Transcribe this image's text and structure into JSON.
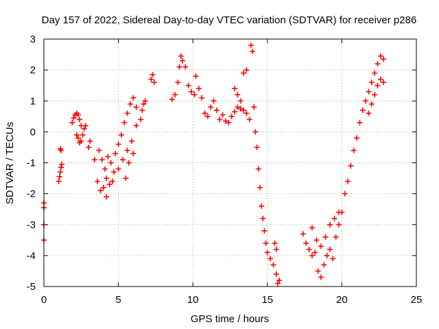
{
  "chart_data": {
    "type": "scatter",
    "title": "Day 157 of 2022, Sidereal Day-to-day VTEC variation (SDTVAR) for receiver p286",
    "xlabel": "GPS time / hours",
    "ylabel": "SDTVAR / TECUs",
    "xlim": [
      0,
      25
    ],
    "ylim": [
      -5,
      3
    ],
    "xticks": [
      0,
      5,
      10,
      15,
      20,
      25
    ],
    "yticks": [
      -5,
      -4,
      -3,
      -2,
      -1,
      0,
      1,
      2,
      3
    ],
    "grid": true,
    "marker": "+",
    "color": "#ff0000",
    "series": [
      {
        "name": "SDTVAR",
        "x": [
          0.0,
          0.0,
          0.0,
          0.0,
          1.0,
          1.05,
          1.1,
          1.15,
          1.2,
          1.1,
          1.15,
          1.9,
          2.0,
          2.1,
          2.2,
          2.3,
          2.4,
          2.5,
          2.2,
          2.3,
          2.4,
          2.5,
          2.6,
          2.7,
          2.8,
          3.0,
          3.1,
          3.4,
          3.6,
          3.8,
          4.0,
          4.2,
          4.4,
          4.6,
          3.7,
          3.9,
          4.1,
          4.3,
          4.5,
          4.7,
          4.2,
          4.8,
          5.0,
          5.2,
          5.4,
          5.6,
          5.8,
          6.0,
          6.2,
          5.0,
          5.3,
          5.6,
          5.9,
          6.2,
          5.5,
          5.7,
          6.0,
          6.5,
          6.6,
          6.7,
          6.8,
          7.2,
          7.3,
          7.4,
          8.6,
          8.8,
          9.0,
          9.1,
          9.2,
          9.3,
          9.5,
          9.7,
          9.9,
          10.1,
          10.2,
          10.4,
          10.6,
          10.8,
          11.0,
          11.2,
          11.4,
          11.6,
          11.8,
          12.0,
          12.2,
          12.4,
          12.6,
          12.8,
          13.0,
          13.2,
          13.4,
          13.6,
          13.8,
          12.8,
          13.0,
          13.2,
          13.4,
          13.6,
          13.9,
          14.0,
          14.1,
          14.2,
          14.3,
          14.4,
          14.5,
          14.6,
          14.7,
          14.8,
          14.9,
          15.0,
          15.2,
          15.4,
          15.6,
          15.8,
          15.5,
          15.6,
          15.7,
          17.4,
          17.6,
          17.8,
          18.0,
          18.2,
          18.4,
          18.6,
          18.8,
          19.0,
          19.2,
          19.4,
          18.0,
          18.3,
          18.6,
          18.9,
          19.2,
          19.5,
          19.8,
          19.6,
          19.8,
          20.0,
          20.2,
          20.4,
          20.6,
          20.8,
          21.0,
          21.2,
          21.4,
          21.6,
          21.8,
          22.0,
          21.8,
          22.0,
          22.2,
          22.4,
          22.6,
          22.8,
          22.2,
          22.4,
          22.6,
          22.8
        ],
        "y": [
          -2.3,
          -2.45,
          -3.0,
          -3.5,
          -1.6,
          -1.45,
          -1.3,
          -1.15,
          -1.05,
          -0.55,
          -0.6,
          0.3,
          0.45,
          0.55,
          0.6,
          0.55,
          0.4,
          0.2,
          -0.1,
          -0.2,
          -0.35,
          -0.3,
          -0.1,
          0.1,
          0.2,
          -0.5,
          -0.3,
          -0.9,
          -1.6,
          -1.9,
          -1.8,
          -1.5,
          -1.7,
          -1.6,
          -0.6,
          -0.9,
          -1.2,
          -0.8,
          -1.0,
          -1.3,
          -2.1,
          -0.7,
          -0.4,
          -0.1,
          0.3,
          0.6,
          0.9,
          1.1,
          0.8,
          -1.2,
          -0.9,
          -0.6,
          -0.3,
          0.2,
          -1.5,
          -1.0,
          -0.7,
          0.4,
          0.7,
          0.9,
          1.0,
          1.7,
          1.85,
          1.6,
          1.05,
          1.2,
          1.6,
          2.1,
          2.45,
          2.3,
          2.1,
          1.5,
          1.3,
          1.2,
          1.8,
          1.4,
          1.1,
          0.6,
          0.5,
          0.8,
          1.0,
          0.7,
          0.4,
          0.55,
          0.35,
          0.3,
          0.5,
          0.65,
          0.8,
          0.75,
          0.7,
          0.6,
          0.4,
          1.4,
          1.2,
          1.0,
          1.9,
          2.0,
          2.8,
          2.6,
          0.8,
          0.0,
          -0.5,
          -1.2,
          -1.8,
          -2.4,
          -2.8,
          -3.2,
          -3.6,
          -3.9,
          -4.1,
          -4.3,
          -4.6,
          -4.8,
          -3.6,
          -3.8,
          -4.9,
          -3.3,
          -3.6,
          -3.8,
          -4.0,
          -3.9,
          -4.5,
          -4.7,
          -4.3,
          -4.0,
          -3.8,
          -4.1,
          -3.1,
          -3.5,
          -3.7,
          -3.4,
          -3.0,
          -2.8,
          -2.6,
          -3.4,
          -3.0,
          -2.6,
          -2.0,
          -1.6,
          -1.1,
          -0.6,
          -0.2,
          0.3,
          0.7,
          1.0,
          1.3,
          1.6,
          0.6,
          0.9,
          1.2,
          1.5,
          1.7,
          1.6,
          1.9,
          2.2,
          2.45,
          2.35
        ]
      }
    ]
  }
}
